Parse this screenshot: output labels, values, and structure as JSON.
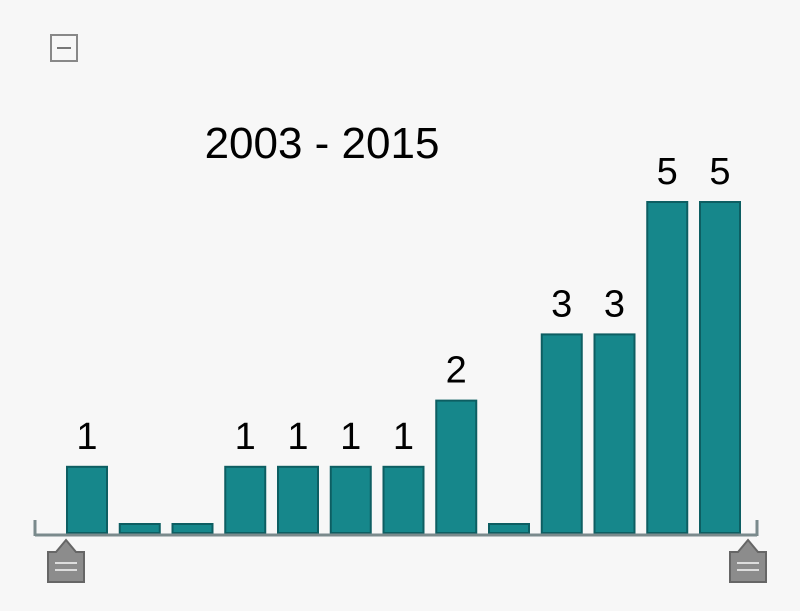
{
  "chart_data": {
    "type": "bar",
    "title": "2003 - 2015",
    "values": [
      1,
      0,
      0,
      1,
      1,
      1,
      1,
      2,
      0,
      3,
      3,
      5,
      5
    ],
    "color": "#16878b"
  }
}
